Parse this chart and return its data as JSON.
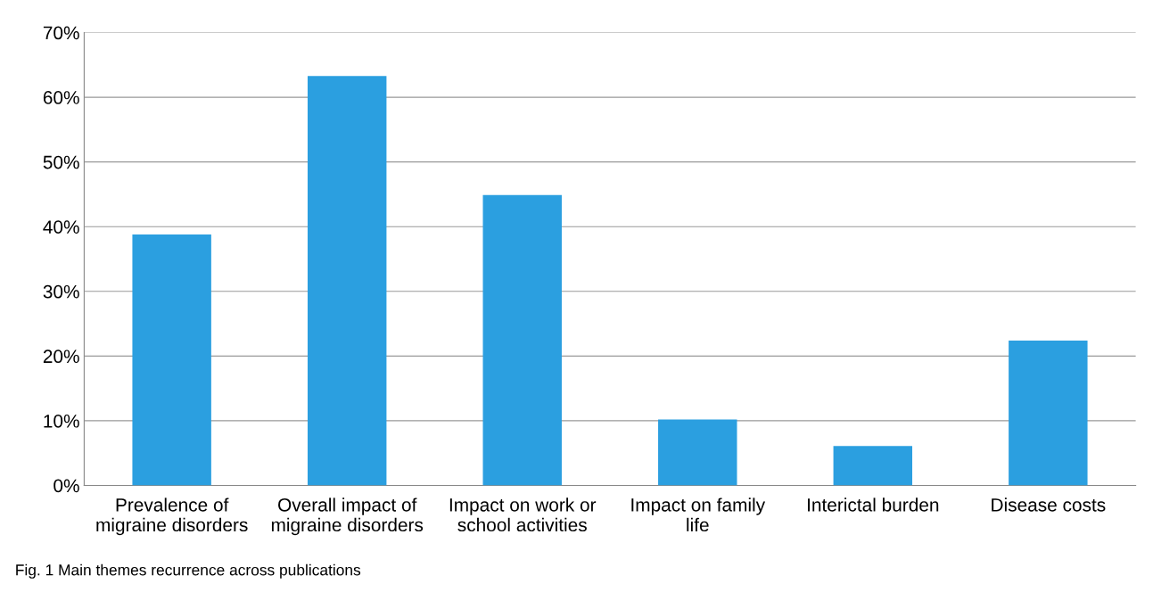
{
  "chart_data": {
    "type": "bar",
    "categories": [
      "Prevalence of\nmigraine disorders",
      "Overall impact of\nmigraine disorders",
      "Impact on work or\nschool activities",
      "Impact on family\nlife",
      "Interictal burden",
      "Disease costs"
    ],
    "series": [
      {
        "color": "#2b9fe0",
        "values": [
          38.8,
          63.3,
          44.9,
          10.2,
          6.1,
          22.4
        ]
      }
    ],
    "ylim": [
      0,
      70
    ],
    "yticks": [
      {
        "value": 0,
        "label": "0%"
      },
      {
        "value": 10,
        "label": "10%"
      },
      {
        "value": 20,
        "label": "20%"
      },
      {
        "value": 30,
        "label": "30%"
      },
      {
        "value": 40,
        "label": "40%"
      },
      {
        "value": 50,
        "label": "50%"
      },
      {
        "value": 60,
        "label": "60%"
      },
      {
        "value": 70,
        "label": "70%"
      }
    ],
    "grid": "y",
    "annotations": [
      "Fig. 1 Main themes recurrence across publications"
    ]
  }
}
